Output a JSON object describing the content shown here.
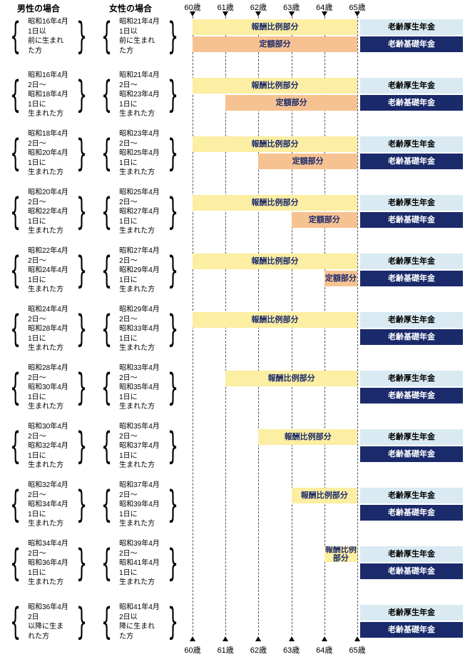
{
  "header": {
    "male_col": "男性の場合",
    "female_col": "女性の場合"
  },
  "ages": [
    "60歳",
    "61歳",
    "62歳",
    "63歳",
    "64歳",
    "65歳"
  ],
  "bar_labels": {
    "proportional": "報酬比例部分",
    "fixed": "定額部分",
    "kosei": "老齢厚生年金",
    "kiso": "老齢基礎年金"
  },
  "colors": {
    "proportional": "#FCEEA2",
    "fixed": "#F6C291",
    "kosei_bg": "#D9EAF2",
    "kiso_bg": "#1A2A6B",
    "kiso_text": "#FFFFFF",
    "bar_text": "#1A2A6B"
  },
  "rows": [
    {
      "male": "昭和16年4月1日以\n前に生まれた方",
      "female": "昭和21年4月1日以\n前に生まれた方",
      "proportional_from": 60,
      "fixed_from": 60
    },
    {
      "male": "昭和16年4月2日～\n昭和18年4月1日に\n生まれた方",
      "female": "昭和21年4月2日～\n昭和23年4月1日に\n生まれた方",
      "proportional_from": 60,
      "fixed_from": 61
    },
    {
      "male": "昭和18年4月2日～\n昭和20年4月1日に\n生まれた方",
      "female": "昭和23年4月2日～\n昭和25年4月1日に\n生まれた方",
      "proportional_from": 60,
      "fixed_from": 62
    },
    {
      "male": "昭和20年4月2日～\n昭和22年4月1日に\n生まれた方",
      "female": "昭和25年4月2日～\n昭和27年4月1日に\n生まれた方",
      "proportional_from": 60,
      "fixed_from": 63
    },
    {
      "male": "昭和22年4月2日～\n昭和24年4月1日に\n生まれた方",
      "female": "昭和27年4月2日～\n昭和29年4月1日に\n生まれた方",
      "proportional_from": 60,
      "fixed_from": 64
    },
    {
      "male": "昭和24年4月2日～\n昭和28年4月1日に\n生まれた方",
      "female": "昭和29年4月2日～\n昭和33年4月1日に\n生まれた方",
      "proportional_from": 60,
      "fixed_from": null
    },
    {
      "male": "昭和28年4月2日～\n昭和30年4月1日に\n生まれた方",
      "female": "昭和33年4月2日～\n昭和35年4月1日に\n生まれた方",
      "proportional_from": 61,
      "fixed_from": null
    },
    {
      "male": "昭和30年4月2日～\n昭和32年4月1日に\n生まれた方",
      "female": "昭和35年4月2日～\n昭和37年4月1日に\n生まれた方",
      "proportional_from": 62,
      "fixed_from": null
    },
    {
      "male": "昭和32年4月2日～\n昭和34年4月1日に\n生まれた方",
      "female": "昭和37年4月2日～\n昭和39年4月1日に\n生まれた方",
      "proportional_from": 63,
      "fixed_from": null
    },
    {
      "male": "昭和34年4月2日～\n昭和36年4月1日に\n生まれた方",
      "female": "昭和39年4月2日～\n昭和41年4月1日に\n生まれた方",
      "proportional_from": 64,
      "fixed_from": null
    },
    {
      "male": "昭和36年4月2日\n以降に生まれた方",
      "female": "昭和41年4月2日以\n降に生まれた方",
      "proportional_from": null,
      "fixed_from": null
    }
  ]
}
